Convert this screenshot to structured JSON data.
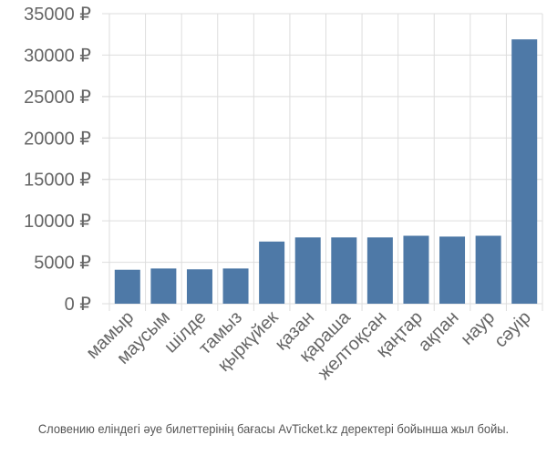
{
  "chart_data": {
    "type": "bar",
    "categories": [
      "мамыр",
      "маусым",
      "шілде",
      "тамыз",
      "қыркүйек",
      "қазан",
      "қараша",
      "желтоқсан",
      "қаңтар",
      "ақпан",
      "наур",
      "сәуір"
    ],
    "values": [
      4100,
      4250,
      4150,
      4250,
      7500,
      8000,
      8000,
      8000,
      8200,
      8100,
      8200,
      31900
    ],
    "ylim": [
      0,
      35000
    ],
    "yticks": [
      0,
      5000,
      10000,
      15000,
      20000,
      25000,
      30000,
      35000
    ],
    "y_unit": "₽",
    "grid": true,
    "bar_color": "#4e79a7"
  },
  "caption": "Словению еліндегі әуе билеттерінің бағасы AvTicket.kz деректері бойынша жыл бойы."
}
